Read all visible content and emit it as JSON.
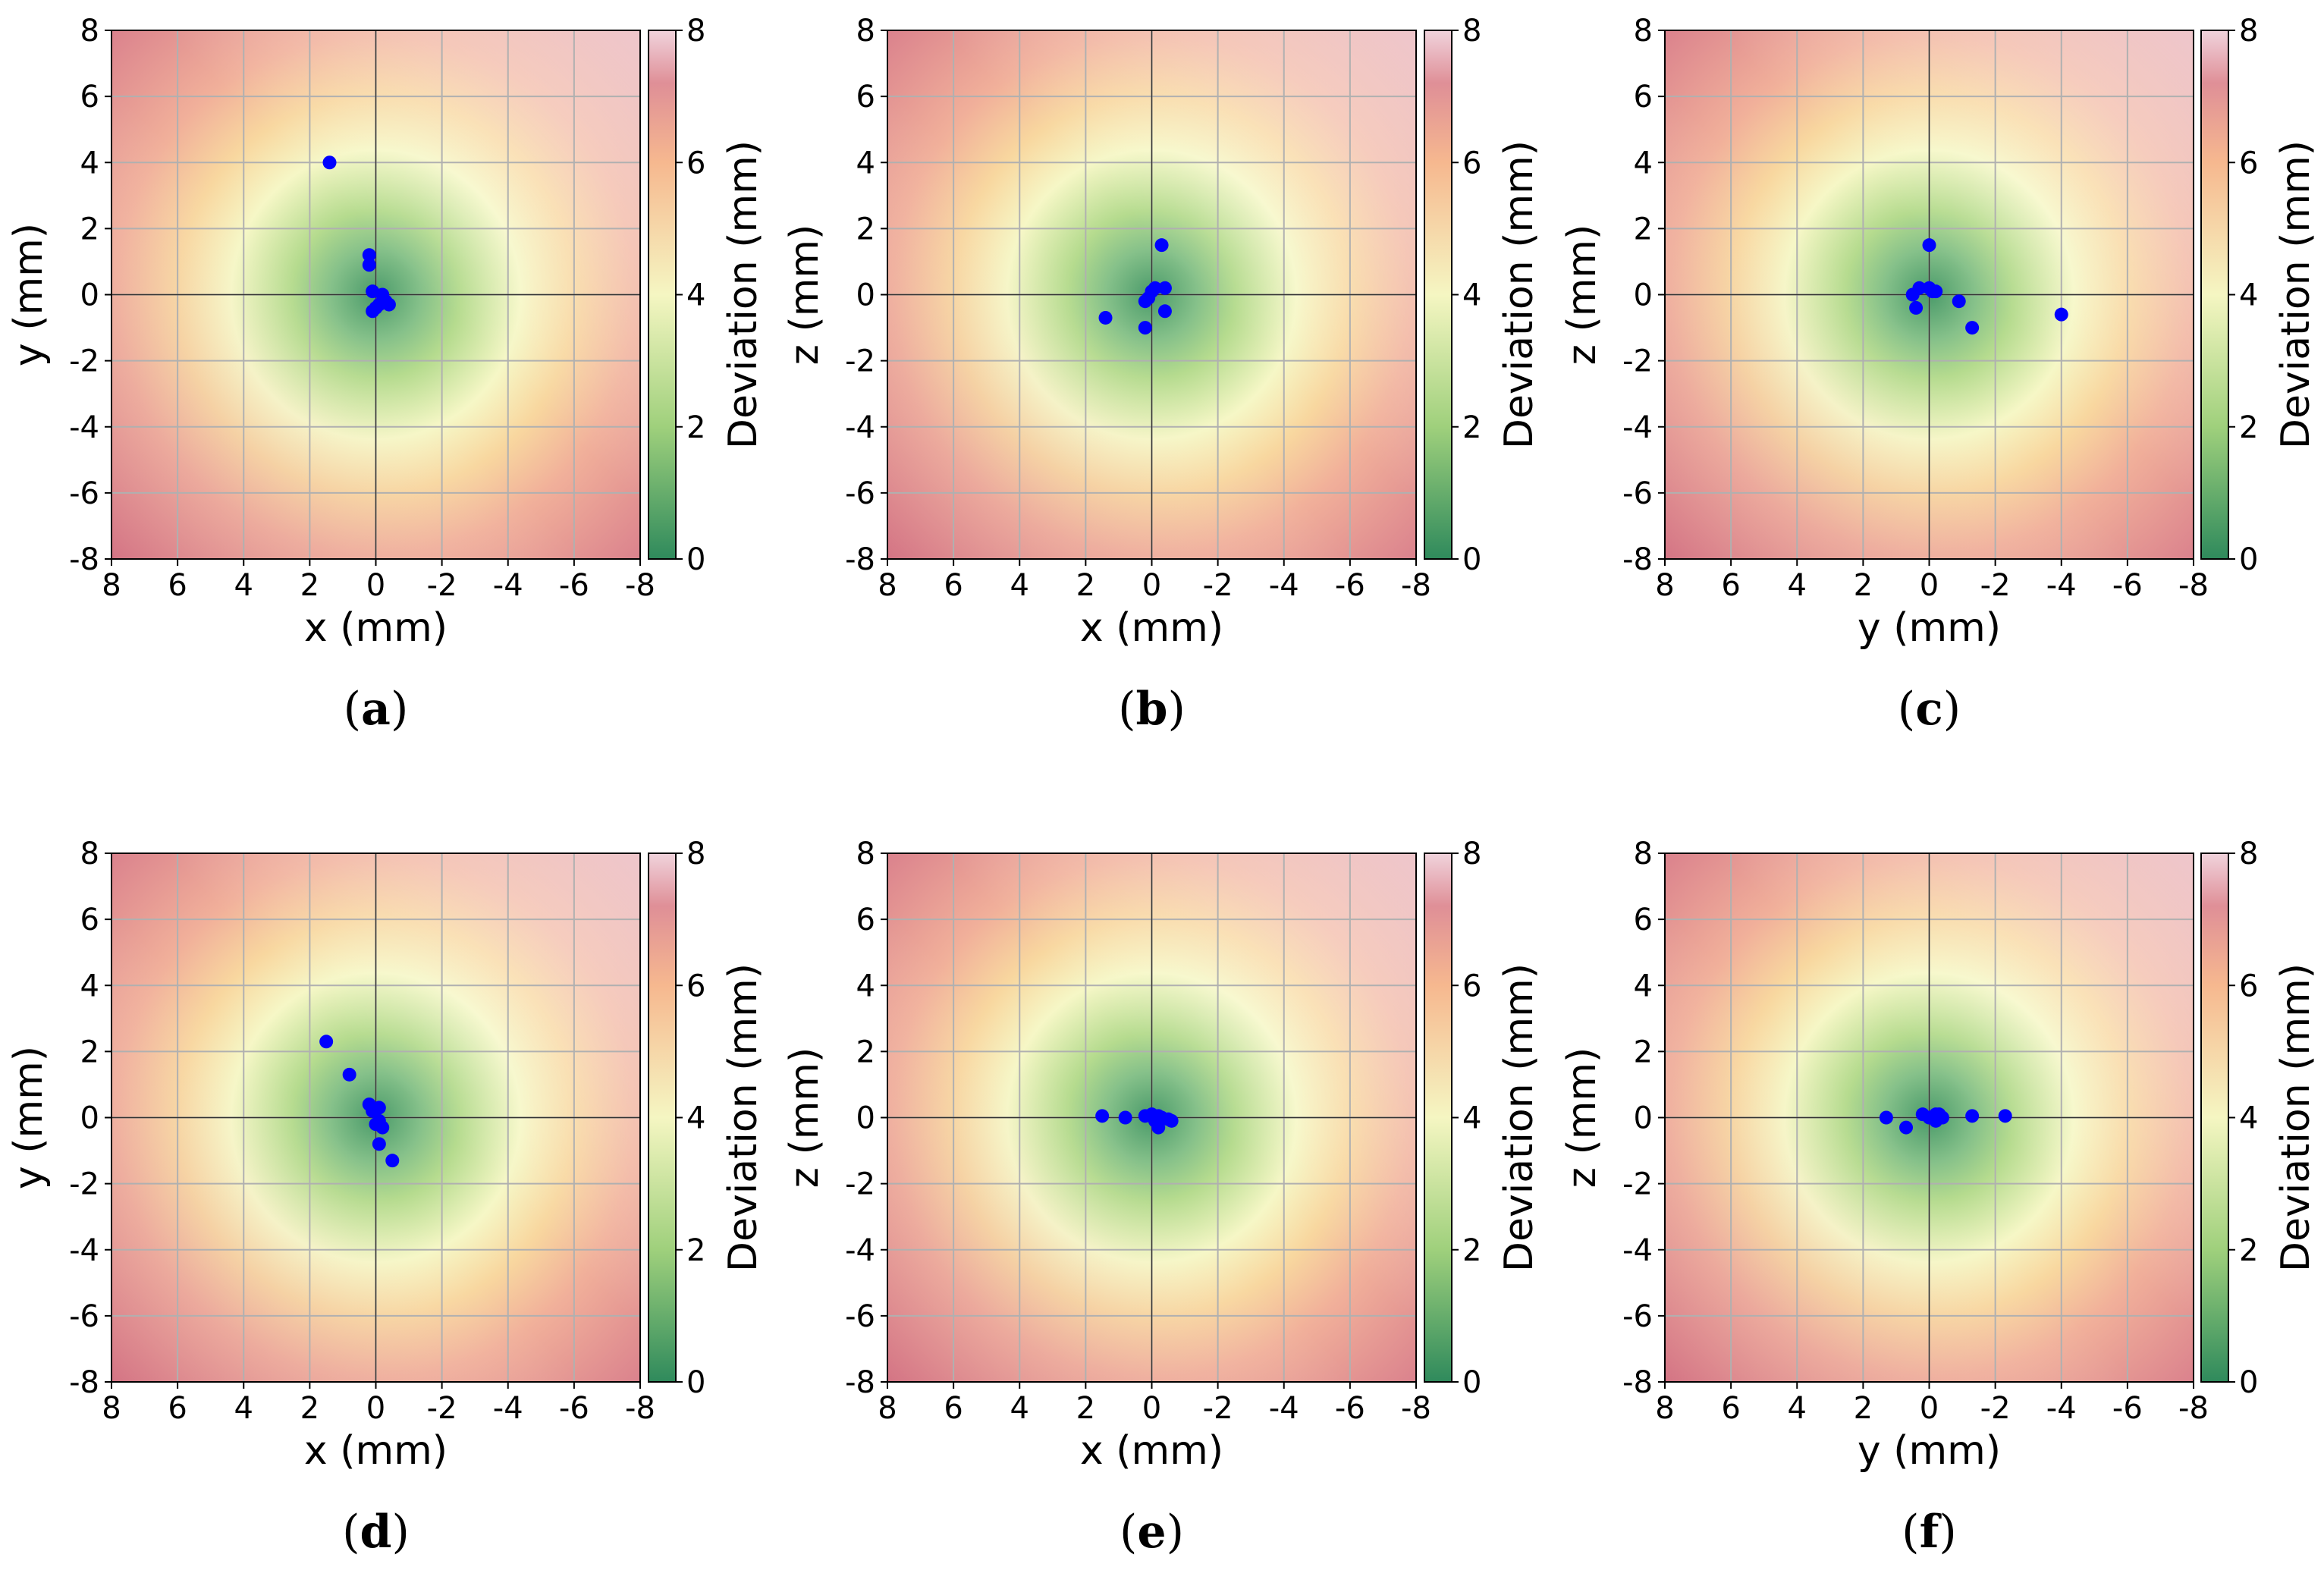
{
  "colors": {
    "marker": "#0000ff",
    "cmap": [
      "#4a9a6a",
      "#b5db8e",
      "#f6f7c6",
      "#f8d79f",
      "#f1b09a",
      "#d97f8c"
    ],
    "grid": "#b0b0b0",
    "axis": "#000000"
  },
  "colorbar": {
    "label": "Deviation (mm)",
    "min": 0,
    "max": 8,
    "ticks": [
      "0",
      "2",
      "4",
      "6",
      "8"
    ]
  },
  "ticks": [
    "8",
    "6",
    "4",
    "2",
    "0",
    "-2",
    "-4",
    "-6",
    "-8"
  ],
  "chart_data": [
    {
      "type": "scatter",
      "panel": "(a)",
      "xlabel": "x (mm)",
      "ylabel": "y (mm)",
      "xlim": [
        8,
        -8
      ],
      "ylim": [
        -8,
        8
      ],
      "grid": true,
      "background": "heatmap of radial deviation 0–8 mm",
      "points": [
        [
          1.4,
          4.0
        ],
        [
          0.2,
          1.2
        ],
        [
          0.2,
          0.9
        ],
        [
          0.1,
          0.1
        ],
        [
          -0.2,
          0.0
        ],
        [
          -0.3,
          -0.2
        ],
        [
          -0.1,
          -0.3
        ],
        [
          0.1,
          -0.5
        ],
        [
          -0.4,
          -0.3
        ],
        [
          0.0,
          -0.4
        ]
      ]
    },
    {
      "type": "scatter",
      "panel": "(b)",
      "xlabel": "x (mm)",
      "ylabel": "z (mm)",
      "xlim": [
        8,
        -8
      ],
      "ylim": [
        -8,
        8
      ],
      "grid": true,
      "background": "heatmap of radial deviation 0–8 mm",
      "points": [
        [
          1.4,
          -0.7
        ],
        [
          0.2,
          -1.0
        ],
        [
          -0.3,
          1.5
        ],
        [
          -0.4,
          0.2
        ],
        [
          -0.4,
          -0.5
        ],
        [
          0.1,
          -0.1
        ],
        [
          0.0,
          0.1
        ],
        [
          -0.1,
          0.2
        ],
        [
          0.2,
          -0.2
        ]
      ]
    },
    {
      "type": "scatter",
      "panel": "(c)",
      "xlabel": "y (mm)",
      "ylabel": "z (mm)",
      "xlim": [
        8,
        -8
      ],
      "ylim": [
        -8,
        8
      ],
      "grid": true,
      "background": "heatmap of radial deviation 0–8 mm",
      "points": [
        [
          -4.0,
          -0.6
        ],
        [
          -1.3,
          -1.0
        ],
        [
          -0.9,
          -0.2
        ],
        [
          0.0,
          1.5
        ],
        [
          0.0,
          0.2
        ],
        [
          -0.1,
          0.1
        ],
        [
          0.3,
          0.2
        ],
        [
          0.5,
          0.0
        ],
        [
          0.4,
          -0.4
        ],
        [
          -0.2,
          0.1
        ]
      ]
    },
    {
      "type": "scatter",
      "panel": "(d)",
      "xlabel": "x (mm)",
      "ylabel": "y (mm)",
      "xlim": [
        8,
        -8
      ],
      "ylim": [
        -8,
        8
      ],
      "grid": true,
      "background": "heatmap of radial deviation 0–8 mm",
      "points": [
        [
          1.5,
          2.3
        ],
        [
          0.8,
          1.3
        ],
        [
          0.2,
          0.4
        ],
        [
          0.1,
          0.2
        ],
        [
          -0.1,
          0.3
        ],
        [
          0.0,
          -0.2
        ],
        [
          -0.1,
          -0.1
        ],
        [
          -0.2,
          -0.3
        ],
        [
          -0.1,
          -0.8
        ],
        [
          -0.5,
          -1.3
        ]
      ]
    },
    {
      "type": "scatter",
      "panel": "(e)",
      "xlabel": "x (mm)",
      "ylabel": "z (mm)",
      "xlim": [
        8,
        -8
      ],
      "ylim": [
        -8,
        8
      ],
      "grid": true,
      "background": "heatmap of radial deviation 0–8 mm",
      "points": [
        [
          1.5,
          0.05
        ],
        [
          0.8,
          0.0
        ],
        [
          0.2,
          0.05
        ],
        [
          0.0,
          0.1
        ],
        [
          -0.2,
          0.05
        ],
        [
          -0.1,
          -0.1
        ],
        [
          -0.3,
          0.0
        ],
        [
          -0.5,
          -0.05
        ],
        [
          -0.6,
          -0.1
        ],
        [
          -0.2,
          -0.3
        ]
      ]
    },
    {
      "type": "scatter",
      "panel": "(f)",
      "xlabel": "y (mm)",
      "ylabel": "z (mm)",
      "xlim": [
        8,
        -8
      ],
      "ylim": [
        -8,
        8
      ],
      "grid": true,
      "background": "heatmap of radial deviation 0–8 mm",
      "points": [
        [
          1.3,
          0.0
        ],
        [
          0.7,
          -0.3
        ],
        [
          0.2,
          0.1
        ],
        [
          0.0,
          0.0
        ],
        [
          -0.2,
          0.1
        ],
        [
          -0.4,
          0.0
        ],
        [
          -0.2,
          -0.1
        ],
        [
          -0.3,
          0.1
        ],
        [
          -1.3,
          0.05
        ],
        [
          -2.3,
          0.05
        ]
      ]
    }
  ]
}
